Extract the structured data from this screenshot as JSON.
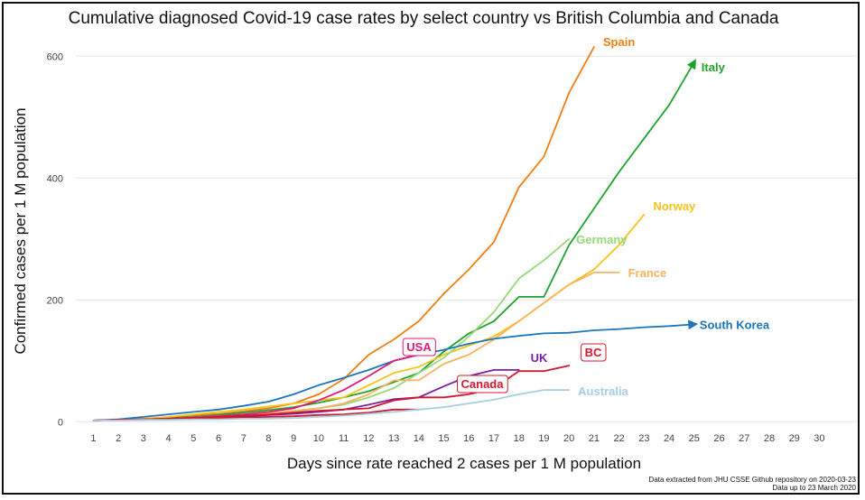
{
  "chart_data": {
    "type": "line",
    "title": "Cumulative diagnosed Covid-19 case rates by select country vs British Columbia and Canada",
    "xlabel": "Days since rate reached 2 cases per 1 M population",
    "ylabel": "Confirmed cases per 1 M population",
    "xlim": [
      0.3,
      31.5
    ],
    "ylim": [
      -10,
      630
    ],
    "xticks": [
      1,
      2,
      3,
      4,
      5,
      6,
      7,
      8,
      9,
      10,
      11,
      12,
      13,
      14,
      15,
      16,
      17,
      18,
      19,
      20,
      21,
      22,
      23,
      24,
      25,
      26,
      27,
      28,
      29,
      30
    ],
    "yticks": [
      0,
      200,
      400,
      600
    ],
    "grid": "horizontal",
    "legend": "direct labels at line ends",
    "footnote_lines": [
      "Data extracted from JHU CSSE Github repository on 2020-03-23",
      "Data up to 23 March 2020"
    ],
    "series": [
      {
        "name": "Spain",
        "color": "#f07f13",
        "boxed": false,
        "arrow": false,
        "x": [
          1,
          2,
          3,
          4,
          5,
          6,
          7,
          8,
          9,
          10,
          11,
          12,
          13,
          14,
          15,
          16,
          17,
          18,
          19,
          20,
          21
        ],
        "y": [
          2,
          3,
          5,
          7,
          10,
          13,
          17,
          22,
          30,
          45,
          70,
          110,
          135,
          165,
          210,
          250,
          295,
          385,
          435,
          540,
          615
        ]
      },
      {
        "name": "Italy",
        "color": "#1ea32b",
        "boxed": false,
        "arrow": true,
        "x": [
          1,
          2,
          3,
          4,
          5,
          6,
          7,
          8,
          9,
          10,
          11,
          12,
          13,
          14,
          15,
          16,
          17,
          18,
          19,
          20,
          21,
          22,
          23,
          24,
          25
        ],
        "y": [
          2,
          3,
          4,
          6,
          8,
          11,
          15,
          19,
          24,
          31,
          40,
          50,
          65,
          80,
          115,
          145,
          165,
          205,
          205,
          290,
          350,
          410,
          465,
          520,
          590
        ]
      },
      {
        "name": "Norway",
        "color": "#f5c319",
        "boxed": false,
        "arrow": false,
        "x": [
          1,
          2,
          3,
          4,
          5,
          6,
          7,
          8,
          9,
          10,
          11,
          12,
          13,
          14,
          15,
          16,
          17,
          18,
          19,
          20,
          21,
          22,
          23
        ],
        "y": [
          2,
          3,
          5,
          8,
          12,
          16,
          20,
          25,
          30,
          35,
          40,
          60,
          80,
          90,
          110,
          125,
          140,
          165,
          195,
          225,
          250,
          290,
          340
        ]
      },
      {
        "name": "Germany",
        "color": "#98d87a",
        "boxed": false,
        "arrow": false,
        "x": [
          1,
          2,
          3,
          4,
          5,
          6,
          7,
          8,
          9,
          10,
          11,
          12,
          13,
          14,
          15,
          16,
          17,
          18,
          19,
          20
        ],
        "y": [
          2,
          3,
          4,
          5,
          7,
          9,
          11,
          14,
          17,
          22,
          28,
          40,
          55,
          80,
          105,
          140,
          180,
          235,
          265,
          300
        ]
      },
      {
        "name": "France",
        "color": "#fbb360",
        "boxed": false,
        "arrow": false,
        "x": [
          1,
          2,
          3,
          4,
          5,
          6,
          7,
          8,
          9,
          10,
          11,
          12,
          13,
          14,
          15,
          16,
          17,
          18,
          19,
          20,
          21,
          22
        ],
        "y": [
          2,
          3,
          4,
          5,
          7,
          9,
          11,
          14,
          18,
          22,
          30,
          45,
          68,
          68,
          95,
          110,
          135,
          165,
          195,
          225,
          245,
          245
        ]
      },
      {
        "name": "South Korea",
        "color": "#1b75bb",
        "boxed": false,
        "arrow": true,
        "x": [
          1,
          2,
          3,
          4,
          5,
          6,
          7,
          8,
          9,
          10,
          11,
          12,
          13,
          14,
          15,
          16,
          17,
          18,
          19,
          20,
          21,
          22,
          23,
          24,
          25
        ],
        "y": [
          2,
          4,
          8,
          12,
          16,
          20,
          26,
          33,
          45,
          60,
          72,
          85,
          100,
          110,
          118,
          128,
          136,
          141,
          145,
          146,
          150,
          152,
          155,
          157,
          160
        ]
      },
      {
        "name": "USA",
        "color": "#e0197b",
        "boxed": true,
        "arrow": false,
        "x": [
          1,
          2,
          3,
          4,
          5,
          6,
          7,
          8,
          9,
          10,
          11,
          12,
          13,
          14
        ],
        "y": [
          2,
          3,
          4,
          5,
          7,
          9,
          12,
          16,
          22,
          35,
          52,
          75,
          100,
          110
        ]
      },
      {
        "name": "UK",
        "color": "#7b1fa2",
        "boxed": false,
        "arrow": false,
        "x": [
          1,
          2,
          3,
          4,
          5,
          6,
          7,
          8,
          9,
          10,
          11,
          12,
          13,
          14,
          15,
          16,
          17,
          18
        ],
        "y": [
          2,
          3,
          4,
          5,
          6,
          7,
          9,
          11,
          13,
          16,
          20,
          28,
          37,
          40,
          58,
          75,
          85,
          85
        ]
      },
      {
        "name": "BC",
        "color": "#d3182c",
        "boxed": true,
        "arrow": false,
        "x": [
          1,
          2,
          3,
          4,
          5,
          6,
          7,
          8,
          9,
          10,
          11,
          12,
          13,
          14,
          15,
          16,
          17,
          18,
          19,
          20
        ],
        "y": [
          2,
          3,
          4,
          5,
          6,
          8,
          10,
          12,
          15,
          18,
          20,
          22,
          35,
          40,
          40,
          45,
          55,
          83,
          83,
          92
        ]
      },
      {
        "name": "Canada",
        "color": "#d3182c",
        "boxed": true,
        "arrow": false,
        "x": [
          1,
          2,
          3,
          4,
          5,
          6,
          7,
          8,
          9,
          10,
          11,
          12,
          13,
          14
        ],
        "y": [
          2,
          3,
          3,
          4,
          5,
          6,
          7,
          8,
          9,
          11,
          12,
          15,
          20,
          20
        ]
      },
      {
        "name": "Australia",
        "color": "#a6cee3",
        "boxed": false,
        "arrow": false,
        "x": [
          1,
          2,
          3,
          4,
          5,
          6,
          7,
          8,
          9,
          10,
          11,
          12,
          13,
          14,
          15,
          16,
          17,
          18,
          19,
          20
        ],
        "y": [
          2,
          2,
          3,
          3,
          4,
          4,
          5,
          5,
          6,
          8,
          10,
          13,
          16,
          20,
          24,
          30,
          36,
          45,
          52,
          52
        ]
      }
    ]
  }
}
